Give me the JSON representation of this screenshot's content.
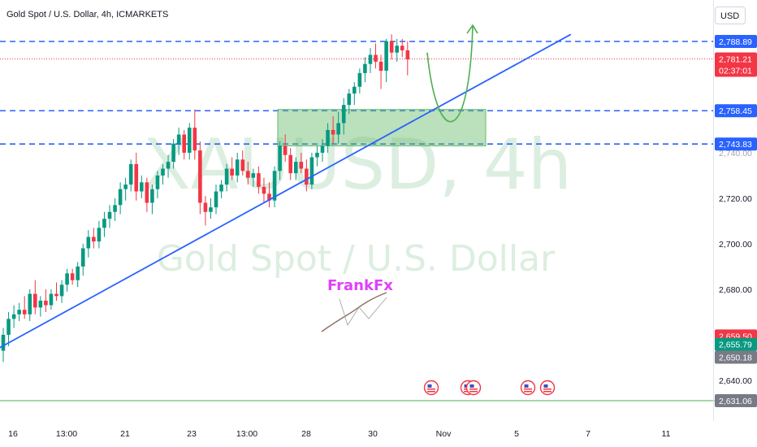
{
  "header": {
    "symbol_line": "Gold Spot / U.S. Dollar, 4h, ICMARKETS"
  },
  "currency_button": "USD",
  "watermark": {
    "ticker": "XAUUSD, 4h",
    "name": "Gold Spot / U.S. Dollar"
  },
  "brand": {
    "text": "FrankFx"
  },
  "colors": {
    "up": "#089981",
    "down": "#f23645",
    "trendline": "#2962ff",
    "level": "#2962ff",
    "zone": "#66bb6a",
    "arrow": "#4caf50",
    "watermark": "#dceee0"
  },
  "chart_data": {
    "type": "candlestick",
    "title": "Gold Spot / U.S. Dollar, 4h, ICMARKETS",
    "ylim": [
      2626,
      2802
    ],
    "y_ticks": [
      "2,720.00",
      "2,700.00",
      "2,680.00",
      "2,640.00"
    ],
    "x_ticks": [
      "16",
      "13:00",
      "21",
      "23",
      "13:00",
      "28",
      "30",
      "Nov",
      "5",
      "7",
      "11"
    ],
    "levels": [
      {
        "label": "2,788.89",
        "value": 2788.89,
        "style": "dashed"
      },
      {
        "label": "2,758.45",
        "value": 2758.45,
        "style": "dashed"
      },
      {
        "label": "2,743.83",
        "value": 2743.83,
        "style": "dashed"
      }
    ],
    "price_labels": [
      {
        "label": "2,788.89",
        "value": 2788.89,
        "color": "#2962ff"
      },
      {
        "label": "2,781.21",
        "sublabel": "02:37:01",
        "value": 2781.21,
        "color": "#f23645"
      },
      {
        "label": "2,758.45",
        "value": 2758.45,
        "color": "#2962ff"
      },
      {
        "label": "2,743.83",
        "value": 2743.83,
        "color": "#2962ff"
      },
      {
        "label": "2,659.50",
        "value": 2659.5,
        "color": "#f23645"
      },
      {
        "label": "2,655.79",
        "value": 2655.79,
        "color": "#089981"
      },
      {
        "label": "2,650.18",
        "value": 2650.18,
        "color": "#787b86"
      },
      {
        "label": "2,631.06",
        "value": 2631.06,
        "color": "#787b86"
      }
    ],
    "current_price": 2781.21,
    "zone": {
      "top": 2759,
      "bottom": 2743
    },
    "candles": [
      {
        "o": 2653,
        "h": 2663,
        "l": 2648,
        "c": 2660
      },
      {
        "o": 2660,
        "h": 2670,
        "l": 2655,
        "c": 2667
      },
      {
        "o": 2667,
        "h": 2673,
        "l": 2663,
        "c": 2669
      },
      {
        "o": 2669,
        "h": 2674,
        "l": 2666,
        "c": 2671
      },
      {
        "o": 2671,
        "h": 2677,
        "l": 2667,
        "c": 2669
      },
      {
        "o": 2669,
        "h": 2680,
        "l": 2666,
        "c": 2678
      },
      {
        "o": 2678,
        "h": 2684,
        "l": 2669,
        "c": 2672
      },
      {
        "o": 2672,
        "h": 2677,
        "l": 2668,
        "c": 2675
      },
      {
        "o": 2675,
        "h": 2680,
        "l": 2670,
        "c": 2673
      },
      {
        "o": 2673,
        "h": 2680,
        "l": 2671,
        "c": 2678
      },
      {
        "o": 2678,
        "h": 2683,
        "l": 2675,
        "c": 2677
      },
      {
        "o": 2677,
        "h": 2684,
        "l": 2674,
        "c": 2682
      },
      {
        "o": 2682,
        "h": 2689,
        "l": 2679,
        "c": 2687
      },
      {
        "o": 2687,
        "h": 2689,
        "l": 2682,
        "c": 2684
      },
      {
        "o": 2684,
        "h": 2692,
        "l": 2681,
        "c": 2690
      },
      {
        "o": 2690,
        "h": 2700,
        "l": 2686,
        "c": 2698
      },
      {
        "o": 2698,
        "h": 2706,
        "l": 2694,
        "c": 2703
      },
      {
        "o": 2703,
        "h": 2707,
        "l": 2698,
        "c": 2701
      },
      {
        "o": 2701,
        "h": 2710,
        "l": 2698,
        "c": 2707
      },
      {
        "o": 2707,
        "h": 2714,
        "l": 2703,
        "c": 2711
      },
      {
        "o": 2711,
        "h": 2717,
        "l": 2707,
        "c": 2714
      },
      {
        "o": 2714,
        "h": 2720,
        "l": 2710,
        "c": 2717
      },
      {
        "o": 2717,
        "h": 2727,
        "l": 2713,
        "c": 2724
      },
      {
        "o": 2724,
        "h": 2729,
        "l": 2719,
        "c": 2726
      },
      {
        "o": 2726,
        "h": 2737,
        "l": 2723,
        "c": 2735
      },
      {
        "o": 2735,
        "h": 2740,
        "l": 2719,
        "c": 2723
      },
      {
        "o": 2723,
        "h": 2730,
        "l": 2720,
        "c": 2727
      },
      {
        "o": 2727,
        "h": 2729,
        "l": 2714,
        "c": 2718
      },
      {
        "o": 2718,
        "h": 2726,
        "l": 2713,
        "c": 2724
      },
      {
        "o": 2724,
        "h": 2732,
        "l": 2720,
        "c": 2730
      },
      {
        "o": 2730,
        "h": 2735,
        "l": 2726,
        "c": 2733
      },
      {
        "o": 2733,
        "h": 2739,
        "l": 2729,
        "c": 2736
      },
      {
        "o": 2736,
        "h": 2746,
        "l": 2733,
        "c": 2744
      },
      {
        "o": 2744,
        "h": 2751,
        "l": 2739,
        "c": 2748
      },
      {
        "o": 2748,
        "h": 2750,
        "l": 2737,
        "c": 2740
      },
      {
        "o": 2740,
        "h": 2753,
        "l": 2737,
        "c": 2751
      },
      {
        "o": 2751,
        "h": 2759,
        "l": 2737,
        "c": 2741
      },
      {
        "o": 2741,
        "h": 2745,
        "l": 2713,
        "c": 2718
      },
      {
        "o": 2718,
        "h": 2721,
        "l": 2708,
        "c": 2714
      },
      {
        "o": 2714,
        "h": 2720,
        "l": 2711,
        "c": 2716
      },
      {
        "o": 2716,
        "h": 2726,
        "l": 2713,
        "c": 2723
      },
      {
        "o": 2723,
        "h": 2728,
        "l": 2720,
        "c": 2726
      },
      {
        "o": 2726,
        "h": 2735,
        "l": 2723,
        "c": 2733
      },
      {
        "o": 2733,
        "h": 2738,
        "l": 2728,
        "c": 2730
      },
      {
        "o": 2730,
        "h": 2740,
        "l": 2727,
        "c": 2737
      },
      {
        "o": 2737,
        "h": 2741,
        "l": 2730,
        "c": 2732
      },
      {
        "o": 2732,
        "h": 2736,
        "l": 2726,
        "c": 2729
      },
      {
        "o": 2729,
        "h": 2733,
        "l": 2725,
        "c": 2731
      },
      {
        "o": 2731,
        "h": 2734,
        "l": 2722,
        "c": 2725
      },
      {
        "o": 2725,
        "h": 2729,
        "l": 2718,
        "c": 2722
      },
      {
        "o": 2722,
        "h": 2727,
        "l": 2716,
        "c": 2719
      },
      {
        "o": 2719,
        "h": 2734,
        "l": 2716,
        "c": 2732
      },
      {
        "o": 2732,
        "h": 2745,
        "l": 2728,
        "c": 2743
      },
      {
        "o": 2743,
        "h": 2748,
        "l": 2736,
        "c": 2739
      },
      {
        "o": 2739,
        "h": 2742,
        "l": 2728,
        "c": 2731
      },
      {
        "o": 2731,
        "h": 2738,
        "l": 2728,
        "c": 2736
      },
      {
        "o": 2736,
        "h": 2740,
        "l": 2731,
        "c": 2733
      },
      {
        "o": 2733,
        "h": 2737,
        "l": 2723,
        "c": 2726
      },
      {
        "o": 2726,
        "h": 2740,
        "l": 2724,
        "c": 2738
      },
      {
        "o": 2738,
        "h": 2743,
        "l": 2734,
        "c": 2740
      },
      {
        "o": 2740,
        "h": 2746,
        "l": 2736,
        "c": 2743
      },
      {
        "o": 2743,
        "h": 2753,
        "l": 2740,
        "c": 2750
      },
      {
        "o": 2750,
        "h": 2756,
        "l": 2744,
        "c": 2748
      },
      {
        "o": 2748,
        "h": 2758,
        "l": 2744,
        "c": 2753
      },
      {
        "o": 2753,
        "h": 2764,
        "l": 2748,
        "c": 2761
      },
      {
        "o": 2761,
        "h": 2768,
        "l": 2757,
        "c": 2766
      },
      {
        "o": 2766,
        "h": 2771,
        "l": 2761,
        "c": 2769
      },
      {
        "o": 2769,
        "h": 2777,
        "l": 2766,
        "c": 2775
      },
      {
        "o": 2775,
        "h": 2782,
        "l": 2771,
        "c": 2779
      },
      {
        "o": 2779,
        "h": 2786,
        "l": 2775,
        "c": 2783
      },
      {
        "o": 2783,
        "h": 2788,
        "l": 2777,
        "c": 2780
      },
      {
        "o": 2780,
        "h": 2783,
        "l": 2768,
        "c": 2776
      },
      {
        "o": 2776,
        "h": 2790,
        "l": 2771,
        "c": 2789
      },
      {
        "o": 2789,
        "h": 2792,
        "l": 2781,
        "c": 2784
      },
      {
        "o": 2784,
        "h": 2790,
        "l": 2780,
        "c": 2787
      },
      {
        "o": 2787,
        "h": 2790,
        "l": 2782,
        "c": 2785
      },
      {
        "o": 2785,
        "h": 2789,
        "l": 2774,
        "c": 2781
      }
    ],
    "trendline": {
      "start": {
        "candle": 0,
        "value": 2654
      },
      "end": {
        "candle": 96,
        "value": 2792
      }
    },
    "projection": {
      "from": 2784,
      "low": 2756,
      "to": 2796
    }
  }
}
